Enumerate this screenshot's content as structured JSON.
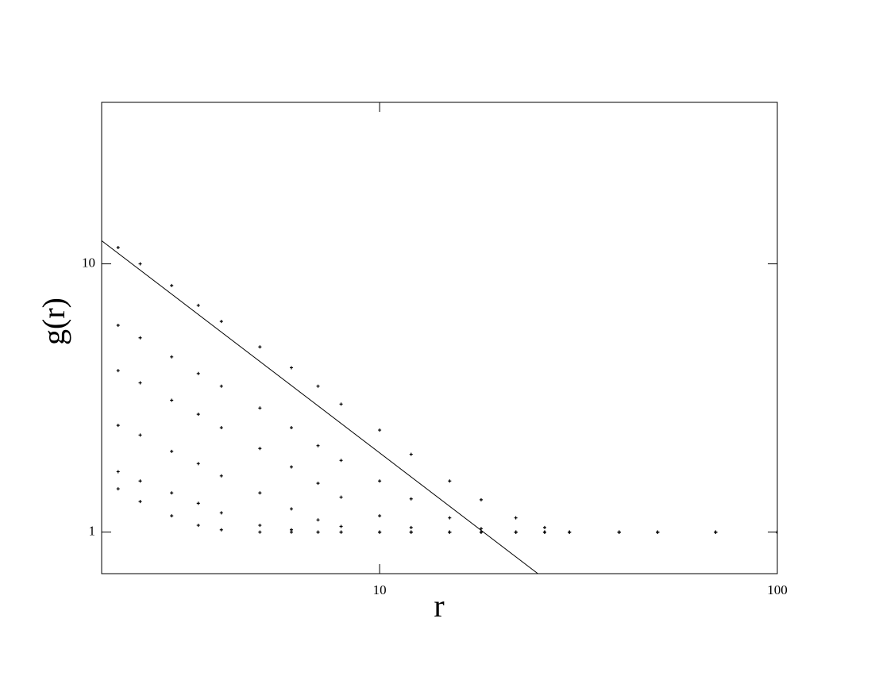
{
  "chart_data": {
    "type": "scatter",
    "log_x": true,
    "log_y": true,
    "x_label": "r",
    "y_label": "g(r)",
    "xlim": [
      2,
      100
    ],
    "ylim": [
      0.7,
      40
    ],
    "xticks": [
      10,
      100
    ],
    "yticks": [
      1,
      10
    ],
    "x": [
      2.2,
      2.5,
      3,
      3.5,
      4,
      5,
      6,
      7,
      8,
      10,
      12,
      15,
      18,
      22,
      26,
      30,
      40,
      50,
      70,
      100
    ],
    "series": [
      {
        "color": "#000000",
        "values": [
          11.5,
          10,
          8.3,
          7,
          6.1,
          4.9,
          4.1,
          3.5,
          3.0,
          2.4,
          1.95,
          1.55,
          1.32,
          1.13,
          1.04,
          1.0,
          1.0,
          1.0,
          1.0,
          1.0
        ]
      },
      {
        "color": "#000000",
        "values": [
          5.9,
          5.3,
          4.5,
          3.9,
          3.5,
          2.9,
          2.45,
          2.1,
          1.85,
          1.55,
          1.33,
          1.13,
          1.03,
          1.0,
          1.0,
          1.0,
          1.0,
          1.0,
          1.0,
          1.0
        ]
      },
      {
        "color": "#000000",
        "values": [
          4.0,
          3.6,
          3.1,
          2.75,
          2.45,
          2.05,
          1.75,
          1.52,
          1.35,
          1.15,
          1.04,
          1.0,
          1.0,
          1.0,
          1.0,
          1.0,
          1.0,
          1.0,
          1.0,
          1.0
        ]
      },
      {
        "color": "#000000",
        "values": [
          2.5,
          2.3,
          2.0,
          1.8,
          1.62,
          1.4,
          1.22,
          1.11,
          1.05,
          1.0,
          1.0,
          1.0,
          1.0,
          1.0,
          1.0,
          1.0,
          1.0,
          1.0,
          1.0,
          1.0
        ]
      },
      {
        "color": "#000000",
        "values": [
          1.68,
          1.55,
          1.4,
          1.28,
          1.18,
          1.06,
          1.02,
          1.0,
          1.0,
          1.0,
          1.0,
          1.0,
          1.0,
          1.0,
          1.0,
          1.0,
          1.0,
          1.0,
          1.0,
          1.0
        ]
      },
      {
        "color": "#000000",
        "values": [
          1.45,
          1.3,
          1.15,
          1.06,
          1.02,
          1.0,
          1.0,
          1.0,
          1.0,
          1.0,
          1.0,
          1.0,
          1.0,
          1.0,
          1.0,
          1.0,
          1.0,
          1.0,
          1.0,
          1.0
        ]
      }
    ],
    "fit_line": {
      "color": "#000000",
      "x": [
        2,
        25
      ],
      "values": [
        12.2,
        0.7
      ]
    }
  }
}
